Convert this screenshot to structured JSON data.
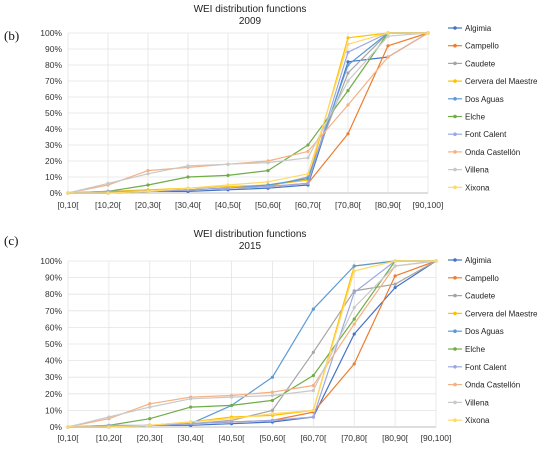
{
  "panels": [
    {
      "label": "(b)",
      "title": "WEI distribution functions",
      "subtitle": "2009"
    },
    {
      "label": "(c)",
      "title": "WEI distribution functions",
      "subtitle": "2015"
    }
  ],
  "chart_data": [
    {
      "type": "line",
      "title": "WEI distribution functions",
      "subtitle": "2009",
      "categories": [
        "[0,10[",
        "[10,20[",
        "[20,30[",
        "[30,40[",
        "[40,50[",
        "[50,60[",
        "[60,70[",
        "[70,80[",
        "[80,90[",
        "[90,100]"
      ],
      "y_ticks": [
        "0%",
        "10%",
        "20%",
        "30%",
        "40%",
        "50%",
        "60%",
        "70%",
        "80%",
        "90%",
        "100%"
      ],
      "ylim": [
        0,
        100
      ],
      "grid": true,
      "legend": "right",
      "series": [
        {
          "name": "Algimia",
          "color": "#4472c4",
          "values": [
            0,
            0,
            1,
            1,
            2,
            3,
            5,
            82,
            85,
            100
          ]
        },
        {
          "name": "Campello",
          "color": "#ed7d31",
          "values": [
            0,
            0,
            1,
            2,
            3,
            4,
            6,
            37,
            92,
            100
          ]
        },
        {
          "name": "Caudete",
          "color": "#a5a5a5",
          "values": [
            0,
            0,
            1,
            2,
            3,
            4,
            10,
            75,
            100,
            100
          ]
        },
        {
          "name": "Cervera del Maestre",
          "color": "#ffc000",
          "values": [
            0,
            1,
            2,
            3,
            4,
            5,
            8,
            97,
            100,
            100
          ]
        },
        {
          "name": "Dos Aguas",
          "color": "#5b9bd5",
          "values": [
            0,
            0,
            1,
            2,
            3,
            5,
            9,
            80,
            100,
            100
          ]
        },
        {
          "name": "Elche",
          "color": "#70ad47",
          "values": [
            0,
            1,
            5,
            10,
            11,
            14,
            30,
            64,
            100,
            100
          ]
        },
        {
          "name": "Font Calent",
          "color": "#9da8e3",
          "values": [
            0,
            1,
            1,
            2,
            3,
            4,
            6,
            88,
            100,
            100
          ]
        },
        {
          "name": "Onda Castellón",
          "color": "#f4b183",
          "values": [
            0,
            5,
            14,
            16,
            18,
            20,
            26,
            55,
            85,
            100
          ]
        },
        {
          "name": "Villena",
          "color": "#c9c9c9",
          "values": [
            0,
            6,
            12,
            17,
            18,
            19,
            22,
            70,
            98,
            100
          ]
        },
        {
          "name": "Xixona",
          "color": "#ffd966",
          "values": [
            0,
            0,
            1,
            3,
            5,
            7,
            12,
            93,
            100,
            100
          ]
        }
      ]
    },
    {
      "type": "line",
      "title": "WEI distribution functions",
      "subtitle": "2015",
      "categories": [
        "[0,10[",
        "[10,20[",
        "[20,30[",
        "[30,40[",
        "[40,50[",
        "[50,60[",
        "[60,70[",
        "[70,80[",
        "[80,90[",
        "[90,100]"
      ],
      "y_ticks": [
        "0%",
        "10%",
        "20%",
        "30%",
        "40%",
        "50%",
        "60%",
        "70%",
        "80%",
        "90%",
        "100%"
      ],
      "ylim": [
        0,
        100
      ],
      "grid": true,
      "legend": "right",
      "series": [
        {
          "name": "Algimia",
          "color": "#4472c4",
          "values": [
            0,
            0,
            1,
            1,
            2,
            3,
            6,
            56,
            84,
            100
          ]
        },
        {
          "name": "Campello",
          "color": "#ed7d31",
          "values": [
            0,
            0,
            1,
            2,
            3,
            4,
            9,
            38,
            91,
            100
          ]
        },
        {
          "name": "Caudete",
          "color": "#a5a5a5",
          "values": [
            0,
            0,
            1,
            2,
            4,
            10,
            45,
            82,
            86,
            100
          ]
        },
        {
          "name": "Cervera del Maestre",
          "color": "#ffc000",
          "values": [
            0,
            0,
            1,
            3,
            6,
            7,
            10,
            97,
            100,
            100
          ]
        },
        {
          "name": "Dos Aguas",
          "color": "#5b9bd5",
          "values": [
            0,
            0,
            1,
            2,
            13,
            30,
            71,
            97,
            100,
            100
          ]
        },
        {
          "name": "Elche",
          "color": "#70ad47",
          "values": [
            0,
            1,
            5,
            12,
            13,
            16,
            31,
            65,
            100,
            100
          ]
        },
        {
          "name": "Font Calent",
          "color": "#9da8e3",
          "values": [
            0,
            1,
            1,
            2,
            3,
            4,
            6,
            81,
            100,
            100
          ]
        },
        {
          "name": "Onda Castellón",
          "color": "#f4b183",
          "values": [
            0,
            5,
            14,
            18,
            19,
            21,
            25,
            62,
            97,
            100
          ]
        },
        {
          "name": "Villena",
          "color": "#c9c9c9",
          "values": [
            0,
            6,
            12,
            17,
            18,
            19,
            22,
            72,
            97,
            100
          ]
        },
        {
          "name": "Xixona",
          "color": "#ffd966",
          "values": [
            0,
            0,
            1,
            3,
            5,
            8,
            10,
            94,
            100,
            100
          ]
        }
      ]
    }
  ]
}
